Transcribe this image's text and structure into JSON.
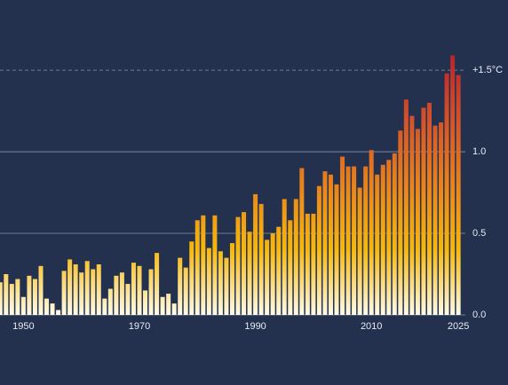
{
  "chart_data": {
    "type": "bar",
    "categories": [
      null,
      null,
      null,
      null,
      1950,
      null,
      null,
      null,
      null,
      null,
      null,
      null,
      null,
      null,
      null,
      null,
      null,
      null,
      null,
      null,
      null,
      null,
      null,
      null,
      1970,
      null,
      null,
      null,
      null,
      null,
      null,
      null,
      null,
      null,
      null,
      null,
      null,
      null,
      null,
      null,
      null,
      null,
      null,
      null,
      1990,
      null,
      null,
      null,
      null,
      null,
      null,
      null,
      null,
      null,
      null,
      null,
      null,
      null,
      null,
      null,
      null,
      null,
      null,
      null,
      2010,
      null,
      null,
      null,
      null,
      null,
      null,
      null,
      null,
      null,
      null,
      null,
      null,
      null,
      null,
      2025
    ],
    "values": [
      0.2,
      0.25,
      0.19,
      0.22,
      0.11,
      0.24,
      0.22,
      0.3,
      0.1,
      0.07,
      0.03,
      0.27,
      0.34,
      0.31,
      0.26,
      0.33,
      0.28,
      0.31,
      0.1,
      0.16,
      0.24,
      0.26,
      0.19,
      0.32,
      0.3,
      0.15,
      0.28,
      0.38,
      0.11,
      0.13,
      0.07,
      0.35,
      0.29,
      0.45,
      0.58,
      0.61,
      0.41,
      0.61,
      0.39,
      0.35,
      0.44,
      0.6,
      0.63,
      0.51,
      0.74,
      0.68,
      0.46,
      0.5,
      0.54,
      0.71,
      0.58,
      0.71,
      0.9,
      0.62,
      0.62,
      0.79,
      0.88,
      0.86,
      0.8,
      0.97,
      0.91,
      0.91,
      0.78,
      0.91,
      1.01,
      0.86,
      0.92,
      0.95,
      0.99,
      1.13,
      1.32,
      1.22,
      1.14,
      1.27,
      1.3,
      1.16,
      1.18,
      1.48,
      1.59,
      1.47
    ],
    "colors": [
      "#fffbe8",
      "#f7b80d",
      "#e8821c",
      "#d2522a",
      "#b8232b"
    ],
    "ylim": [
      0,
      1.93
    ],
    "yticks": [
      {
        "value": 0,
        "label": "0.0"
      },
      {
        "value": 0.5,
        "label": "0.5"
      },
      {
        "value": 1,
        "label": "1.0"
      },
      {
        "value": 1.5,
        "label": "+1.5°C"
      }
    ],
    "grid": true
  }
}
